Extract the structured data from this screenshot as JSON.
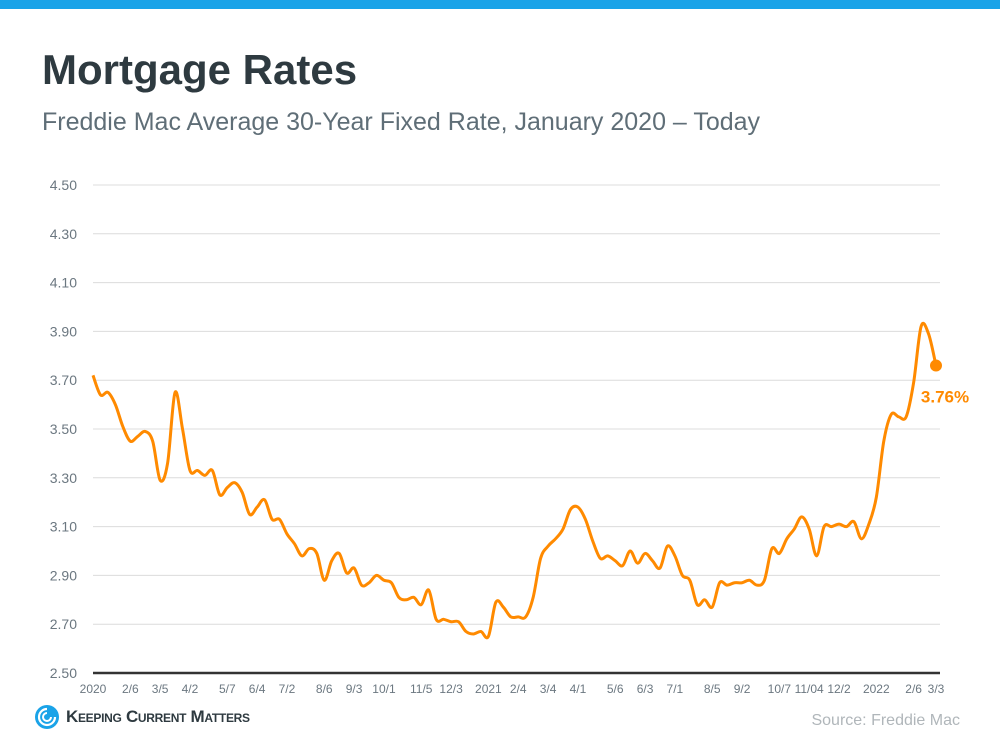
{
  "header": {
    "title": "Mortgage Rates",
    "subtitle": "Freddie Mac Average 30-Year Fixed Rate, January 2020 – Today"
  },
  "footer": {
    "logo_text": "Keeping Current Matters",
    "source": "Source: Freddie Mac"
  },
  "colors": {
    "accent": "#1aa3e8",
    "line": "#ff8a00",
    "title": "#2e3a40"
  },
  "chart_data": {
    "type": "line",
    "title": "Mortgage Rates",
    "ylim": [
      2.5,
      4.5
    ],
    "yticks": [
      "2.50",
      "2.70",
      "2.90",
      "3.10",
      "3.30",
      "3.50",
      "3.70",
      "3.90",
      "4.10",
      "4.30",
      "4.50"
    ],
    "grid": true,
    "xticks": [
      {
        "label": "2020",
        "week": 0
      },
      {
        "label": "2/6",
        "week": 5
      },
      {
        "label": "3/5",
        "week": 9
      },
      {
        "label": "4/2",
        "week": 13
      },
      {
        "label": "5/7",
        "week": 18
      },
      {
        "label": "6/4",
        "week": 22
      },
      {
        "label": "7/2",
        "week": 26
      },
      {
        "label": "8/6",
        "week": 31
      },
      {
        "label": "9/3",
        "week": 35
      },
      {
        "label": "10/1",
        "week": 39
      },
      {
        "label": "11/5",
        "week": 44
      },
      {
        "label": "12/3",
        "week": 48
      },
      {
        "label": "2021",
        "week": 53
      },
      {
        "label": "2/4",
        "week": 57
      },
      {
        "label": "3/4",
        "week": 61
      },
      {
        "label": "4/1",
        "week": 65
      },
      {
        "label": "5/6",
        "week": 70
      },
      {
        "label": "6/3",
        "week": 74
      },
      {
        "label": "7/1",
        "week": 78
      },
      {
        "label": "8/5",
        "week": 83
      },
      {
        "label": "9/2",
        "week": 87
      },
      {
        "label": "10/7",
        "week": 92
      },
      {
        "label": "11/04",
        "week": 96
      },
      {
        "label": "12/2",
        "week": 100
      },
      {
        "label": "2022",
        "week": 105
      },
      {
        "label": "2/6",
        "week": 110
      },
      {
        "label": "3/3",
        "week": 113
      }
    ],
    "series": [
      {
        "values": [
          3.72,
          3.64,
          3.65,
          3.6,
          3.51,
          3.45,
          3.47,
          3.49,
          3.45,
          3.29,
          3.36,
          3.65,
          3.5,
          3.33,
          3.33,
          3.31,
          3.33,
          3.23,
          3.26,
          3.28,
          3.24,
          3.15,
          3.18,
          3.21,
          3.13,
          3.13,
          3.07,
          3.03,
          2.98,
          3.01,
          2.99,
          2.88,
          2.96,
          2.99,
          2.91,
          2.93,
          2.86,
          2.87,
          2.9,
          2.88,
          2.87,
          2.81,
          2.8,
          2.81,
          2.78,
          2.84,
          2.72,
          2.72,
          2.71,
          2.71,
          2.67,
          2.66,
          2.67,
          2.65,
          2.79,
          2.77,
          2.73,
          2.73,
          2.73,
          2.81,
          2.97,
          3.02,
          3.05,
          3.09,
          3.17,
          3.18,
          3.13,
          3.04,
          2.97,
          2.98,
          2.96,
          2.94,
          3.0,
          2.95,
          2.99,
          2.96,
          2.93,
          3.02,
          2.98,
          2.9,
          2.88,
          2.78,
          2.8,
          2.77,
          2.87,
          2.86,
          2.87,
          2.87,
          2.88,
          2.86,
          2.88,
          3.01,
          2.99,
          3.05,
          3.09,
          3.14,
          3.09,
          2.98,
          3.1,
          3.1,
          3.11,
          3.1,
          3.12,
          3.05,
          3.11,
          3.22,
          3.45,
          3.56,
          3.55,
          3.55,
          3.69,
          3.92,
          3.89,
          3.76
        ]
      }
    ],
    "annotation": {
      "label": "3.76%",
      "value": 3.76
    }
  }
}
